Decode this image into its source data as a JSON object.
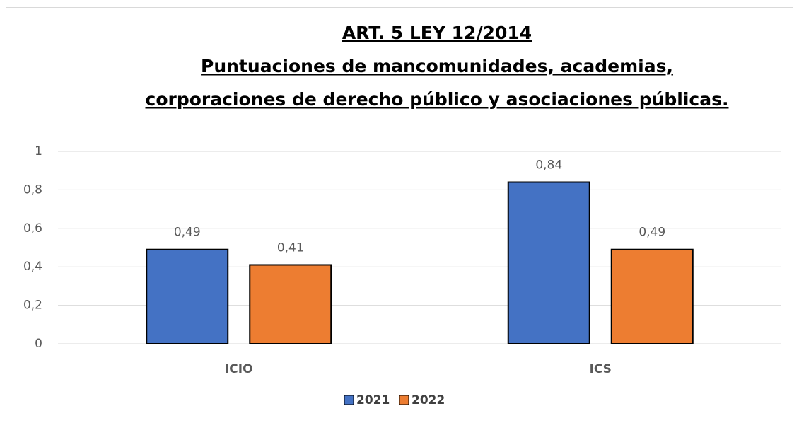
{
  "chart_data": {
    "type": "bar",
    "title": [
      "ART. 5 LEY 12/2014",
      "Puntuaciones de mancomunidades, academias,",
      "corporaciones de derecho público y asociaciones públicas."
    ],
    "categories": [
      "ICIO",
      "ICS"
    ],
    "series": [
      {
        "name": "2021",
        "color": "#4472c4",
        "values": [
          0.49,
          0.84
        ],
        "value_labels": [
          "0,49",
          "0,84"
        ]
      },
      {
        "name": "2022",
        "color": "#ed7d31",
        "values": [
          0.41,
          0.49
        ],
        "value_labels": [
          "0,41",
          "0,49"
        ]
      }
    ],
    "ylim": [
      0,
      1
    ],
    "yticks": [
      0,
      {
        "value": 0.2,
        "label": "0,2"
      },
      {
        "value": 0.4,
        "label": "0,4"
      },
      {
        "value": 0.6,
        "label": "0,6"
      },
      {
        "value": 0.8,
        "label": "0,8"
      },
      1
    ],
    "grid": true,
    "legend": "bottom"
  }
}
